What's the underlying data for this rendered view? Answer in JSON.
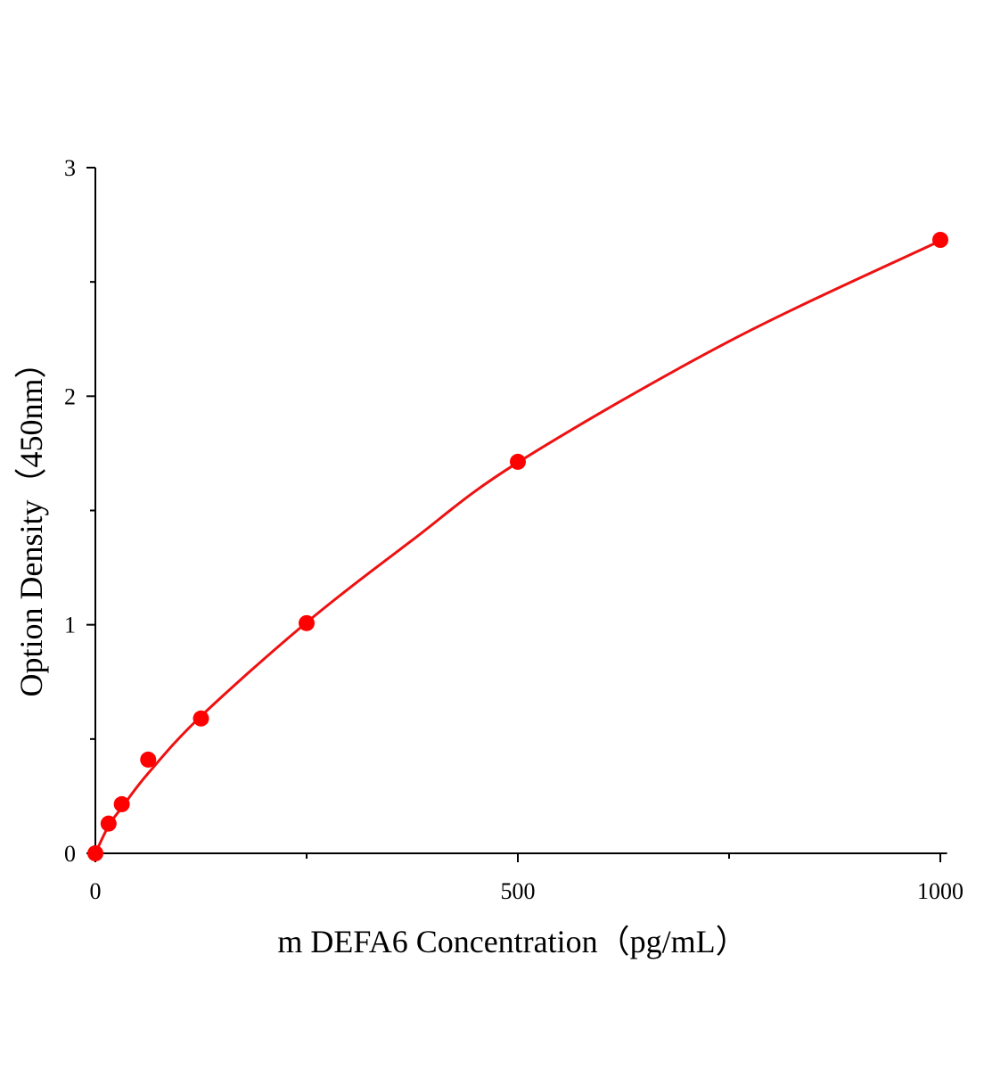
{
  "chart_data": {
    "type": "scatter",
    "x_label": "m DEFA6 Concentration（pg/mL）",
    "y_label": "Option Density（450nm）",
    "xlim": [
      0,
      1008
    ],
    "ylim": [
      0,
      3
    ],
    "xticks": [
      0,
      500,
      1000
    ],
    "yticks": [
      0,
      1,
      2,
      3
    ],
    "xminor": [
      250,
      750
    ],
    "yminor": [
      0.5,
      1.5,
      2.5
    ],
    "series": [
      {
        "kind": "points",
        "color": "#ff0000",
        "x": [
          0,
          15.625,
          31.25,
          62.5,
          125,
          250,
          500,
          1000
        ],
        "values": [
          0,
          0.13,
          0.215,
          0.41,
          0.59,
          1.007,
          1.713,
          2.684
        ]
      },
      {
        "kind": "line",
        "color": "#ee1111",
        "x": [
          0,
          15.625,
          31.25,
          62.5,
          125,
          250,
          375,
          500,
          750,
          1000
        ],
        "values": [
          0,
          0.12,
          0.2,
          0.35,
          0.6,
          1.01,
          1.37,
          1.71,
          2.24,
          2.68
        ]
      }
    ]
  }
}
